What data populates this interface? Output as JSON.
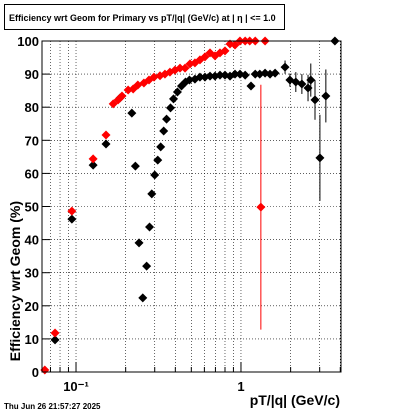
{
  "chart_data": {
    "type": "scatter",
    "title": "Efficiency wrt Geom for Primary vs pT/|q| (GeV/c) at |  η  | <= 1.0",
    "x_label": "pT/|q| (GeV/c)",
    "y_label": "Efficiency wrt Geom (%)",
    "footer": "Thu Jun 26 21:57:27 2025",
    "xlog": true,
    "grid": true,
    "xlim": [
      0.0622,
      4.04
    ],
    "ylim": [
      0,
      100
    ],
    "xticks": [
      {
        "value": 0.1,
        "label": "10⁻¹"
      },
      1
    ],
    "xminor_ticks": [
      0.07,
      0.08,
      0.09,
      0.2,
      0.3,
      0.4,
      0.5,
      0.6,
      0.7,
      0.8,
      0.9,
      2,
      3,
      4
    ],
    "yticks": [
      0,
      10,
      20,
      30,
      40,
      50,
      60,
      70,
      80,
      90,
      100
    ],
    "series": [
      {
        "color": "#000000",
        "x": [
          0.0746,
          0.0944,
          0.127,
          0.152,
          0.185,
          0.218,
          0.229,
          0.241,
          0.254,
          0.268,
          0.279,
          0.288,
          0.3,
          0.313,
          0.326,
          0.34,
          0.354,
          0.374,
          0.39,
          0.412,
          0.436,
          0.461,
          0.487,
          0.526,
          0.564,
          0.605,
          0.649,
          0.696,
          0.746,
          0.8,
          0.858,
          0.92,
          0.986,
          1.06,
          1.15,
          1.22,
          1.3,
          1.4,
          1.5,
          1.61,
          1.85,
          1.98,
          2.15,
          2.34,
          2.55,
          2.65,
          2.81,
          3.01,
          3.27,
          3.71
        ],
        "values": [
          9.7,
          46.2,
          62.5,
          68.9,
          82.8,
          78.2,
          62.2,
          39.0,
          22.4,
          32.0,
          43.8,
          53.8,
          59.5,
          64.0,
          68.0,
          72.8,
          76.4,
          79.8,
          82.5,
          84.6,
          86.4,
          87.6,
          88.2,
          88.5,
          89.1,
          89.1,
          89.4,
          89.4,
          89.7,
          89.7,
          89.4,
          90.0,
          90.0,
          89.7,
          86.4,
          90.0,
          90.0,
          90.3,
          90.0,
          90.3,
          92.1,
          88.2,
          87.6,
          87.0,
          85.8,
          88.2,
          82.2,
          64.7,
          83.4,
          100
        ],
        "yerr": [
          0,
          0,
          0,
          0,
          0,
          0,
          0,
          0,
          0,
          0,
          0,
          0,
          0,
          0,
          0,
          0,
          0,
          0,
          0,
          0,
          0,
          0,
          0,
          0,
          0,
          0,
          0,
          0,
          0,
          0,
          0,
          0,
          0,
          0,
          0,
          0,
          0,
          0,
          0,
          0,
          2,
          2,
          3,
          3,
          4,
          5,
          6,
          13,
          8,
          0
        ]
      },
      {
        "color": "#ff0000",
        "x": [
          0.0647,
          0.0746,
          0.0944,
          0.127,
          0.152,
          0.168,
          0.18,
          0.19,
          0.207,
          0.222,
          0.237,
          0.258,
          0.277,
          0.297,
          0.323,
          0.346,
          0.371,
          0.398,
          0.427,
          0.458,
          0.491,
          0.526,
          0.564,
          0.605,
          0.649,
          0.696,
          0.746,
          0.8,
          0.858,
          0.92,
          0.986,
          1.06,
          1.13,
          1.22,
          1.32,
          1.4
        ],
        "values": [
          0.6,
          11.8,
          48.6,
          64.4,
          71.6,
          81.0,
          82.2,
          83.4,
          85.2,
          85.5,
          86.7,
          87.3,
          88.2,
          89.1,
          89.5,
          90.0,
          90.6,
          91.2,
          91.8,
          91.8,
          93.1,
          93.4,
          94.3,
          95.2,
          96.4,
          95.5,
          96.4,
          97.0,
          99.1,
          98.8,
          100,
          100,
          100,
          100,
          49.8,
          100
        ],
        "yerr": [
          0,
          0,
          0,
          0,
          0,
          0,
          0,
          0,
          0,
          0,
          0,
          0,
          0,
          0,
          0,
          0,
          0,
          0,
          0,
          0,
          0,
          0,
          0,
          0,
          0,
          0,
          0,
          0,
          0,
          0,
          0,
          0,
          0,
          0,
          37,
          0
        ]
      }
    ]
  }
}
